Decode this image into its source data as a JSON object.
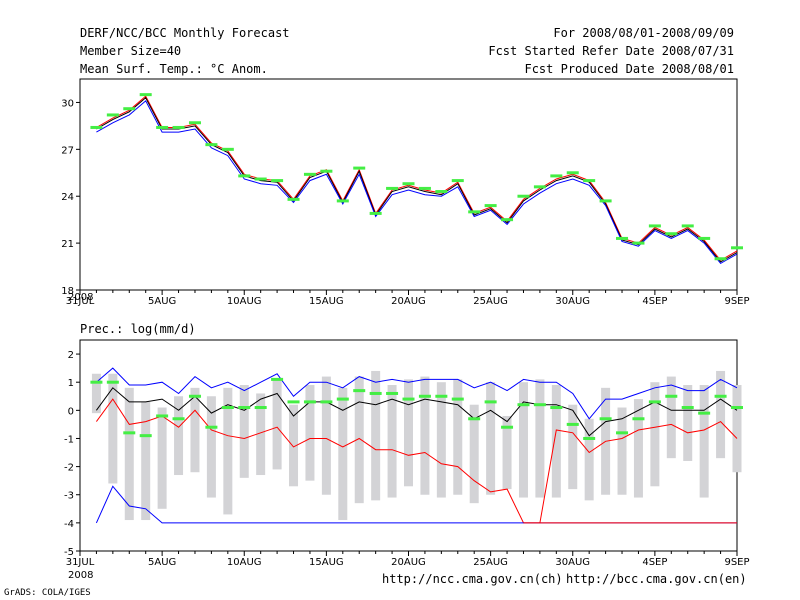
{
  "header": {
    "line1_left": "DERF/NCC/BCC Monthly Forecast",
    "line2_left": "Member Size=40",
    "line3_left": "Mean Surf. Temp.: °C Anom.",
    "line1_right": "For 2008/08/01-2008/09/09",
    "line2_right": "Fcst Started Refer Date 2008/07/31",
    "line3_right": "Fcst Produced Date 2008/08/01"
  },
  "footer": {
    "url_ch": "http://ncc.cma.gov.cn(ch)",
    "url_en": "http://bcc.cma.gov.cn(en)",
    "credit": "GrADS: COLA/IGES"
  },
  "chart_data": [
    {
      "type": "line",
      "title": "Mean Surf. Temp.: °C Anom.",
      "x_tick_labels": [
        "31JUL",
        "5AUG",
        "10AUG",
        "15AUG",
        "20AUG",
        "25AUG",
        "30AUG",
        "4SEP",
        "9SEP"
      ],
      "x_tick_days": [
        0,
        5,
        10,
        15,
        20,
        25,
        30,
        35,
        40
      ],
      "year_label": "2008",
      "ylim": [
        18,
        31.5
      ],
      "y_ticks": [
        18,
        21,
        24,
        27,
        30
      ],
      "x": [
        1,
        2,
        3,
        4,
        5,
        6,
        7,
        8,
        9,
        10,
        11,
        12,
        13,
        14,
        15,
        16,
        17,
        18,
        19,
        20,
        21,
        22,
        23,
        24,
        25,
        26,
        27,
        28,
        29,
        30,
        31,
        32,
        33,
        34,
        35,
        36,
        37,
        38,
        39,
        40
      ],
      "series": [
        {
          "name": "upper",
          "color": "#ff0000",
          "values": [
            28.4,
            29.0,
            29.5,
            30.4,
            28.4,
            28.4,
            28.6,
            27.4,
            26.9,
            25.4,
            25.1,
            25.0,
            23.8,
            25.3,
            25.7,
            23.7,
            25.7,
            22.9,
            24.4,
            24.7,
            24.4,
            24.2,
            24.9,
            22.9,
            23.3,
            22.4,
            23.8,
            24.5,
            25.1,
            25.4,
            25.0,
            23.6,
            21.3,
            21.0,
            22.0,
            21.5,
            22.0,
            21.2,
            19.9,
            20.5
          ]
        },
        {
          "name": "mean",
          "color": "#000000",
          "values": [
            28.3,
            28.9,
            29.4,
            30.3,
            28.3,
            28.3,
            28.5,
            27.3,
            26.8,
            25.3,
            25.0,
            24.9,
            23.7,
            25.2,
            25.6,
            23.6,
            25.6,
            22.8,
            24.3,
            24.6,
            24.3,
            24.1,
            24.8,
            22.8,
            23.2,
            22.3,
            23.7,
            24.4,
            25.0,
            25.3,
            24.9,
            23.5,
            21.2,
            20.9,
            21.9,
            21.4,
            21.9,
            21.1,
            19.8,
            20.4
          ]
        },
        {
          "name": "lower",
          "color": "#0000ff",
          "values": [
            28.1,
            28.7,
            29.2,
            30.1,
            28.1,
            28.1,
            28.3,
            27.1,
            26.6,
            25.1,
            24.8,
            24.7,
            23.6,
            25.0,
            25.4,
            23.5,
            25.4,
            22.7,
            24.1,
            24.4,
            24.1,
            24.0,
            24.6,
            22.7,
            23.1,
            22.2,
            23.5,
            24.2,
            24.8,
            25.1,
            24.7,
            23.4,
            21.1,
            20.8,
            21.8,
            21.3,
            21.8,
            21.0,
            19.7,
            20.3
          ]
        }
      ],
      "markers": {
        "name": "climatology",
        "color": "#44ee44",
        "values": [
          28.4,
          29.2,
          29.6,
          30.5,
          28.4,
          28.4,
          28.7,
          27.3,
          27.0,
          25.3,
          25.1,
          25.0,
          23.8,
          25.4,
          25.6,
          23.7,
          25.8,
          22.9,
          24.5,
          24.8,
          24.5,
          24.3,
          25.0,
          23.0,
          23.4,
          22.5,
          24.0,
          24.6,
          25.3,
          25.5,
          25.0,
          23.7,
          21.3,
          21.0,
          22.1,
          21.6,
          22.1,
          21.3,
          20.0,
          20.7
        ]
      }
    },
    {
      "type": "line",
      "title": "Prec.: log(mm/d)",
      "x_tick_labels": [
        "31JUL",
        "5AUG",
        "10AUG",
        "15AUG",
        "20AUG",
        "25AUG",
        "30AUG",
        "4SEP",
        "9SEP"
      ],
      "x_tick_days": [
        0,
        5,
        10,
        15,
        20,
        25,
        30,
        35,
        40
      ],
      "year_label": "2008",
      "ylim": [
        -5,
        2.5
      ],
      "y_ticks": [
        -5,
        -4,
        -3,
        -2,
        -1,
        0,
        1,
        2
      ],
      "x": [
        1,
        2,
        3,
        4,
        5,
        6,
        7,
        8,
        9,
        10,
        11,
        12,
        13,
        14,
        15,
        16,
        17,
        18,
        19,
        20,
        21,
        22,
        23,
        24,
        25,
        26,
        27,
        28,
        29,
        30,
        31,
        32,
        33,
        34,
        35,
        36,
        37,
        38,
        39,
        40
      ],
      "boxes": {
        "name": "spread",
        "color": "#d3d3d6",
        "low": [
          -0.1,
          -2.6,
          -3.9,
          -3.9,
          -3.5,
          -2.3,
          -2.2,
          -3.1,
          -3.7,
          -2.4,
          -2.3,
          -2.1,
          -2.7,
          -2.5,
          -3.0,
          -3.9,
          -3.3,
          -3.2,
          -3.1,
          -2.7,
          -3.0,
          -3.1,
          -3.0,
          -3.3,
          -3.0,
          -2.8,
          -3.1,
          -3.1,
          -3.1,
          -2.8,
          -3.2,
          -3.0,
          -3.0,
          -3.1,
          -2.7,
          -1.7,
          -1.8,
          -3.1,
          -1.7,
          -2.2
        ],
        "high": [
          1.3,
          1.3,
          0.8,
          0.3,
          0.1,
          0.5,
          0.8,
          0.5,
          0.8,
          0.9,
          0.6,
          1.1,
          0.2,
          0.9,
          1.2,
          0.8,
          1.2,
          1.4,
          0.9,
          1.1,
          1.2,
          1.0,
          1.1,
          0.2,
          1.0,
          -0.2,
          1.0,
          1.1,
          0.9,
          0.2,
          -0.3,
          0.8,
          0.1,
          0.4,
          1.0,
          1.2,
          0.9,
          0.9,
          1.4,
          0.9
        ]
      },
      "series": [
        {
          "name": "upper",
          "color": "#0000ff",
          "values": [
            1.0,
            1.5,
            0.9,
            0.9,
            1.0,
            0.6,
            1.2,
            0.8,
            1.0,
            0.7,
            1.0,
            1.3,
            0.5,
            1.0,
            1.0,
            0.8,
            1.2,
            1.0,
            1.1,
            1.0,
            1.1,
            1.1,
            1.1,
            0.8,
            1.0,
            0.7,
            1.1,
            1.0,
            1.0,
            0.6,
            -0.3,
            0.4,
            0.4,
            0.6,
            0.8,
            0.9,
            0.7,
            0.7,
            1.1,
            0.8
          ]
        },
        {
          "name": "mean",
          "color": "#000000",
          "values": [
            0.0,
            0.8,
            0.3,
            0.3,
            0.4,
            0.0,
            0.5,
            -0.1,
            0.2,
            0.0,
            0.4,
            0.6,
            -0.2,
            0.3,
            0.3,
            0.0,
            0.3,
            0.2,
            0.4,
            0.2,
            0.4,
            0.3,
            0.2,
            -0.3,
            0.0,
            -0.4,
            0.3,
            0.2,
            0.2,
            0.0,
            -0.9,
            -0.4,
            -0.3,
            0.0,
            0.3,
            0.0,
            0.0,
            0.0,
            0.4,
            0.0
          ]
        },
        {
          "name": "lower",
          "color": "#ff0000",
          "values": [
            -0.4,
            0.4,
            -0.5,
            -0.4,
            -0.2,
            -0.6,
            0.0,
            -0.7,
            -0.9,
            -1.0,
            -0.8,
            -0.6,
            -1.3,
            -1.0,
            -1.0,
            -1.3,
            -1.0,
            -1.4,
            -1.4,
            -1.6,
            -1.5,
            -1.9,
            -2.0,
            -2.5,
            -2.9,
            -2.8,
            -4.0,
            -4.0,
            -0.7,
            -0.8,
            -1.5,
            -1.1,
            -1.0,
            -0.7,
            -0.6,
            -0.5,
            -0.8,
            -0.7,
            -0.4,
            -1.0
          ]
        },
        {
          "name": "low_tail",
          "color": "#0000ff",
          "values": [
            -4.0,
            -2.7,
            -3.4,
            -3.5,
            -4.0,
            -4.0,
            -4.0,
            -4.0,
            -4.0,
            -4.0,
            -4.0,
            -4.0,
            -4.0,
            -4.0,
            -4.0,
            -4.0,
            -4.0,
            -4.0,
            -4.0,
            -4.0,
            -4.0,
            -4.0,
            -4.0,
            -4.0,
            -4.0,
            -4.0,
            -4.0,
            -4.0,
            -4.0,
            -4.0,
            -4.0,
            -4.0,
            -4.0,
            -4.0,
            -4.0,
            -4.0,
            -4.0,
            -4.0,
            -4.0,
            -4.0
          ]
        },
        {
          "name": "floor",
          "color": "#ff0000",
          "values": [
            null,
            null,
            null,
            null,
            null,
            null,
            null,
            null,
            null,
            null,
            null,
            null,
            null,
            null,
            null,
            null,
            null,
            null,
            null,
            null,
            null,
            null,
            null,
            null,
            null,
            null,
            -4.0,
            -4.0,
            -4.0,
            -4.0,
            -4.0,
            -4.0,
            -4.0,
            -4.0,
            -4.0,
            -4.0,
            -4.0,
            -4.0,
            -4.0,
            -4.0
          ]
        }
      ],
      "markers": {
        "name": "climatology",
        "color": "#44ee44",
        "values": [
          1.0,
          1.0,
          -0.8,
          -0.9,
          -0.2,
          -0.3,
          0.5,
          -0.6,
          0.1,
          0.1,
          0.1,
          1.1,
          0.3,
          0.3,
          0.3,
          0.4,
          0.7,
          0.6,
          0.6,
          0.4,
          0.5,
          0.5,
          0.4,
          -0.3,
          0.3,
          -0.6,
          0.2,
          0.2,
          0.1,
          -0.5,
          -1.0,
          -0.3,
          -0.8,
          -0.3,
          0.3,
          0.5,
          0.1,
          -0.1,
          0.5,
          0.1
        ]
      }
    }
  ]
}
